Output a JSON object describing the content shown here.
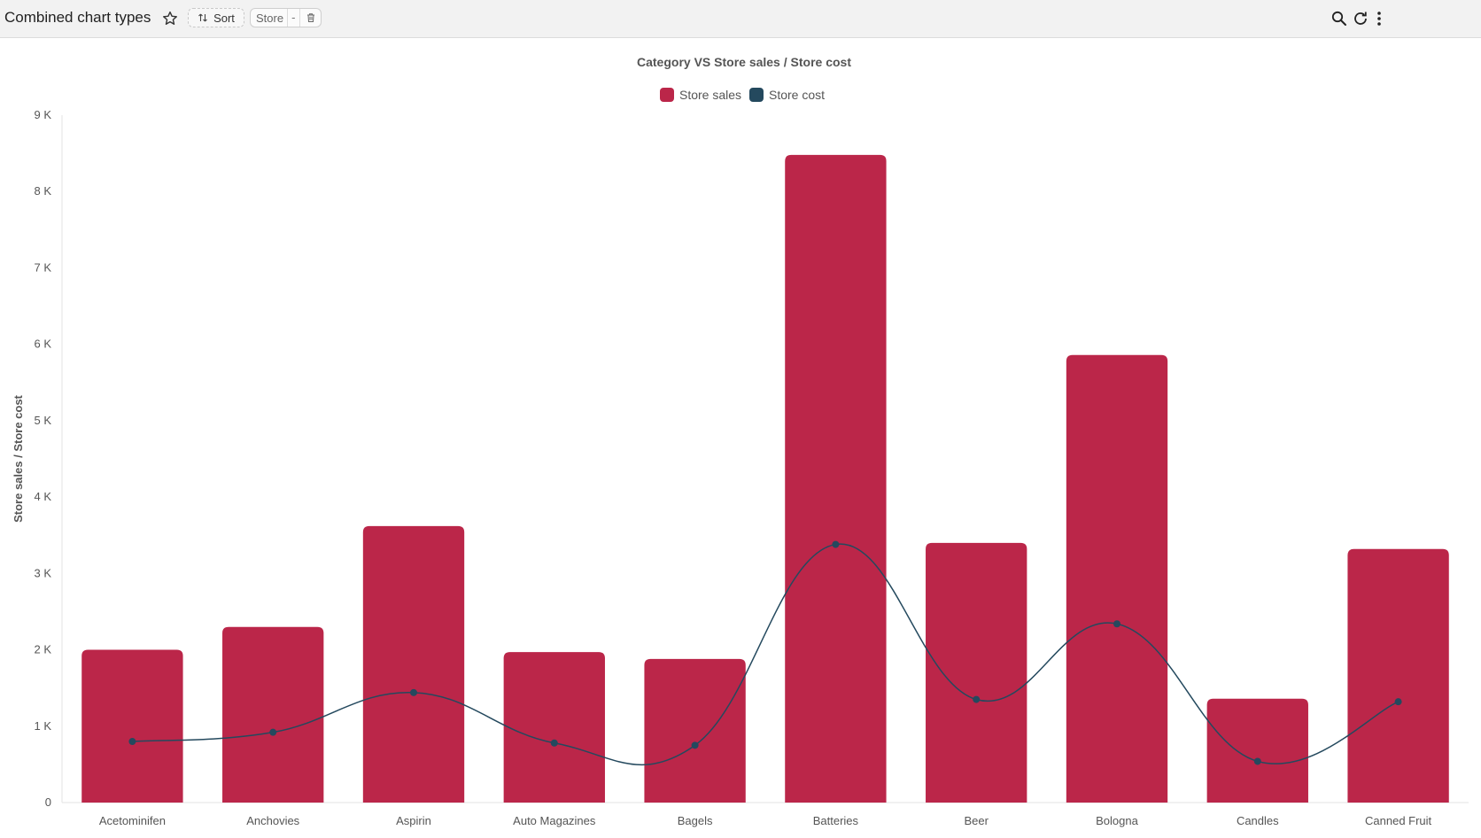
{
  "toolbar": {
    "title": "Combined chart types",
    "sort_label": "Sort",
    "filter_chip": {
      "label": "Store",
      "value": "-"
    },
    "icons": [
      "star-icon",
      "sort-icon",
      "trash-icon",
      "search-icon",
      "refresh-icon",
      "more-vertical-icon"
    ]
  },
  "colors": {
    "store_sales": "#bb2649",
    "store_cost": "#24495e",
    "axis_text": "#555555"
  },
  "chart_data": {
    "type": "bar",
    "title": "Category VS Store sales / Store cost",
    "xlabel": "",
    "ylabel": "Store sales / Store cost",
    "ylim": [
      0,
      9000
    ],
    "y_ticks": [
      0,
      1000,
      2000,
      3000,
      4000,
      5000,
      6000,
      7000,
      8000,
      9000
    ],
    "y_tick_labels": [
      "0",
      "1 K",
      "2 K",
      "3 K",
      "4 K",
      "5 K",
      "6 K",
      "7 K",
      "8 K",
      "9 K"
    ],
    "legend_position": "top-center",
    "grid": false,
    "categories": [
      "Acetominifen",
      "Anchovies",
      "Aspirin",
      "Auto Magazines",
      "Bagels",
      "Batteries",
      "Beer",
      "Bologna",
      "Candles",
      "Canned Fruit"
    ],
    "series": [
      {
        "name": "Store sales",
        "type": "bar",
        "values": [
          2000,
          2300,
          3620,
          1970,
          1880,
          8480,
          3400,
          5860,
          1360,
          3320
        ]
      },
      {
        "name": "Store cost",
        "type": "line",
        "smooth": true,
        "values": [
          800,
          920,
          1440,
          780,
          750,
          3380,
          1350,
          2340,
          540,
          1320
        ]
      }
    ]
  }
}
